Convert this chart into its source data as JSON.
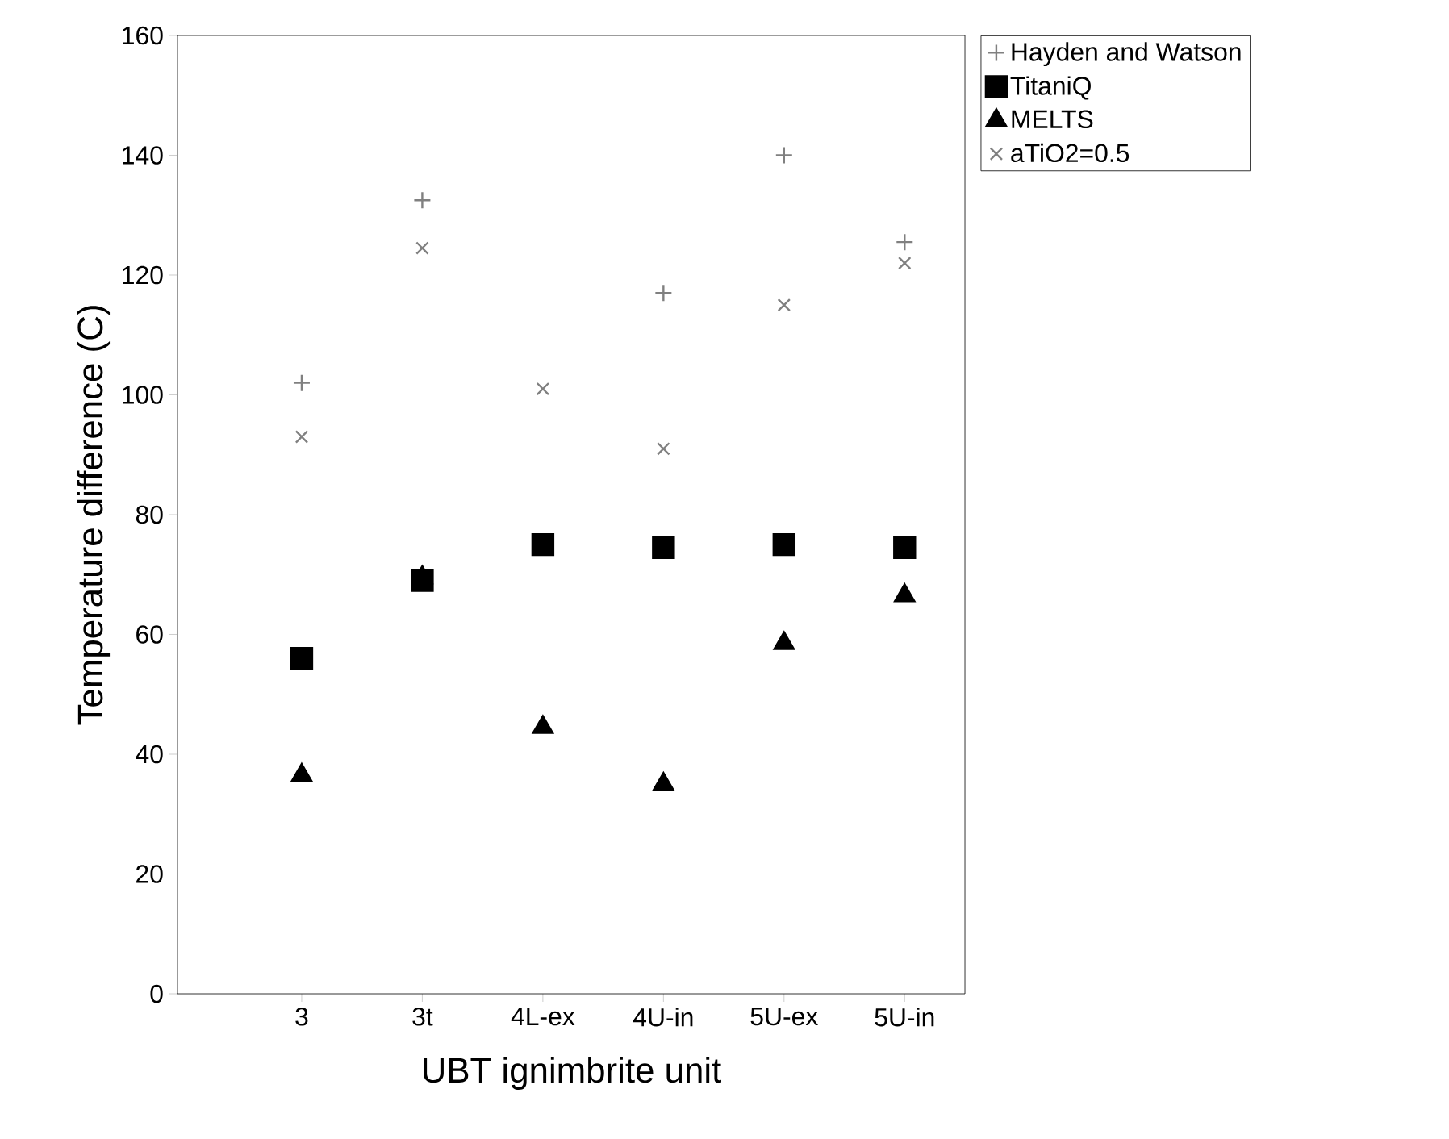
{
  "chart_data": {
    "type": "scatter",
    "xlabel": "UBT ignimbrite unit",
    "ylabel": "Temperature difference (C)",
    "categories": [
      "3",
      "3t",
      "4L-ex",
      "4U-in",
      "5U-ex",
      "5U-in"
    ],
    "ylim": [
      0,
      160
    ],
    "yticks": [
      0,
      20,
      40,
      60,
      80,
      100,
      120,
      140,
      160
    ],
    "grid": false,
    "legend": "top right",
    "series": [
      {
        "name": "Hayden and Watson",
        "color": "#808080",
        "marker": "cross",
        "values": [
          102,
          132.5,
          null,
          117,
          140,
          125.5
        ]
      },
      {
        "name": "TitaniQ",
        "color": "#000000",
        "marker": "square",
        "values": [
          56,
          69,
          75,
          74.5,
          75,
          74.5
        ]
      },
      {
        "name": "MELTS",
        "color": "#000000",
        "marker": "triangle",
        "values": [
          36.5,
          69.5,
          44.5,
          35,
          58.5,
          66.5
        ]
      },
      {
        "name": "aTiO2=0.5",
        "color": "#808080",
        "marker": "x",
        "values": [
          93,
          124.5,
          101,
          91,
          115,
          122
        ]
      }
    ]
  }
}
